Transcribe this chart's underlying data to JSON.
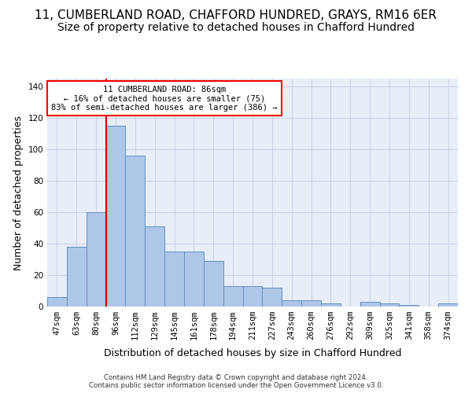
{
  "title1": "11, CUMBERLAND ROAD, CHAFFORD HUNDRED, GRAYS, RM16 6ER",
  "title2": "Size of property relative to detached houses in Chafford Hundred",
  "xlabel": "Distribution of detached houses by size in Chafford Hundred",
  "ylabel": "Number of detached properties",
  "footer1": "Contains HM Land Registry data © Crown copyright and database right 2024.",
  "footer2": "Contains public sector information licensed under the Open Government Licence v3.0.",
  "annotation_line1": "11 CUMBERLAND ROAD: 86sqm",
  "annotation_line2": "← 16% of detached houses are smaller (75)",
  "annotation_line3": "83% of semi-detached houses are larger (386) →",
  "bar_labels": [
    "47sqm",
    "63sqm",
    "80sqm",
    "96sqm",
    "112sqm",
    "129sqm",
    "145sqm",
    "161sqm",
    "178sqm",
    "194sqm",
    "211sqm",
    "227sqm",
    "243sqm",
    "260sqm",
    "276sqm",
    "292sqm",
    "309sqm",
    "325sqm",
    "341sqm",
    "358sqm",
    "374sqm"
  ],
  "bar_heights": [
    6,
    38,
    60,
    115,
    96,
    51,
    35,
    35,
    29,
    13,
    13,
    12,
    4,
    4,
    2,
    0,
    3,
    2,
    1,
    0,
    2
  ],
  "bar_color": "#aec6e8",
  "bar_edge_color": "#6090c0",
  "vline_x": 2.5,
  "vline_color": "#cc0000",
  "ylim_max": 145,
  "ytick_max": 140,
  "grid_color": "#c8d4e8",
  "bg_color": "#e8eef8",
  "title1_fontsize": 11,
  "title2_fontsize": 10,
  "tick_fontsize": 7.5,
  "axis_label_fontsize": 9
}
